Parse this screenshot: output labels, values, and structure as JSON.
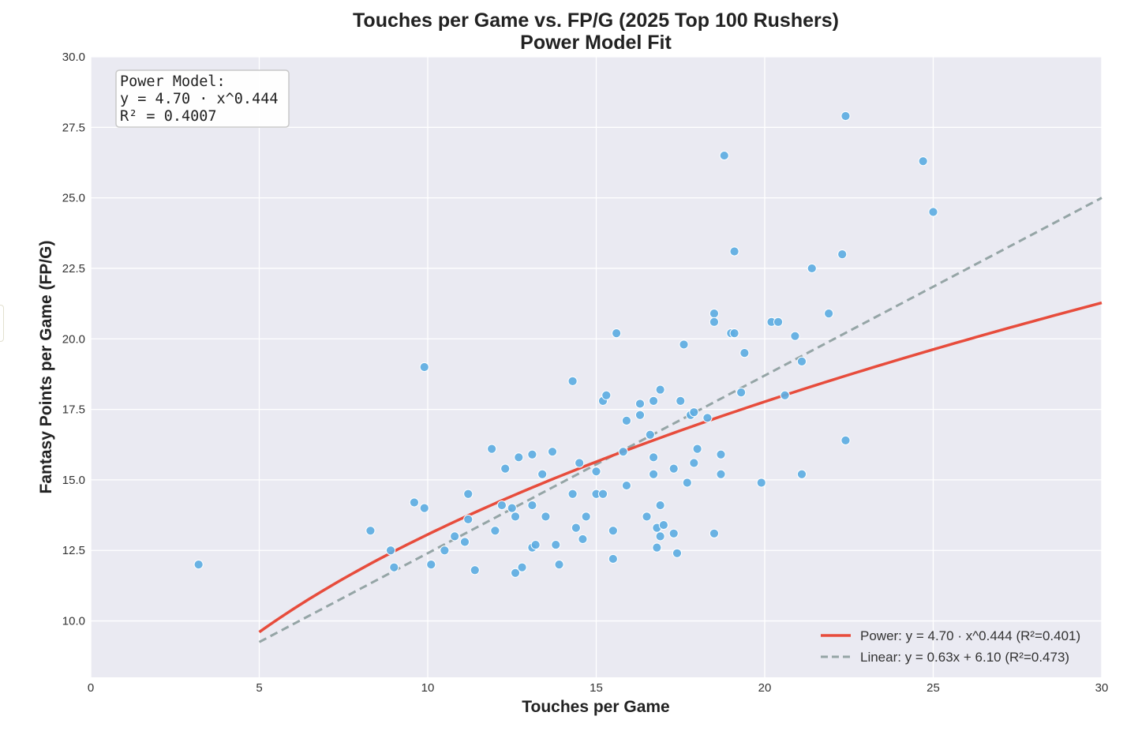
{
  "chart_data": {
    "type": "scatter",
    "title": "Touches per Game vs. FP/G (2025 Top 100 Rushers)",
    "subtitle": "Power Model Fit",
    "xlabel": "Touches per Game",
    "ylabel": "Fantasy Points per Game (FP/G)",
    "xlim": [
      0,
      30
    ],
    "ylim": [
      8,
      30
    ],
    "xticks": [
      "0",
      "5",
      "10",
      "15",
      "20",
      "25",
      "30"
    ],
    "yticks": [
      "10.0",
      "12.5",
      "15.0",
      "17.5",
      "20.0",
      "22.5",
      "25.0",
      "27.5",
      "30.0"
    ],
    "grid": true,
    "legend_position": "lower-right",
    "colors": {
      "points": "#5dade2",
      "power": "#e74c3c",
      "linear": "#95a5a6",
      "plot_background": "#eaeaf2"
    },
    "annotation": {
      "lines": [
        "Power Model:",
        "y = 4.70 · x^0.444",
        "R² = 0.4007"
      ]
    },
    "fits": {
      "power": {
        "label": "Power: y = 4.70 · x^0.444 (R²=0.401)",
        "a": 4.7,
        "b": 0.444,
        "x_range": [
          5,
          30
        ]
      },
      "linear": {
        "label": "Linear: y = 0.63x + 6.10 (R²=0.473)",
        "slope": 0.63,
        "intercept": 6.1,
        "x_range": [
          5,
          30
        ]
      }
    },
    "points": [
      [
        3.2,
        12.0
      ],
      [
        8.3,
        13.2
      ],
      [
        8.9,
        12.5
      ],
      [
        9.0,
        11.9
      ],
      [
        9.6,
        14.2
      ],
      [
        9.9,
        19.0
      ],
      [
        9.9,
        14.0
      ],
      [
        10.1,
        12.0
      ],
      [
        10.5,
        12.5
      ],
      [
        10.8,
        13.0
      ],
      [
        11.1,
        12.8
      ],
      [
        11.2,
        14.5
      ],
      [
        11.2,
        13.6
      ],
      [
        11.4,
        11.8
      ],
      [
        11.9,
        16.1
      ],
      [
        12.0,
        13.2
      ],
      [
        12.2,
        14.1
      ],
      [
        12.3,
        15.4
      ],
      [
        12.5,
        14.0
      ],
      [
        12.6,
        13.7
      ],
      [
        12.6,
        11.7
      ],
      [
        12.7,
        15.8
      ],
      [
        12.8,
        11.9
      ],
      [
        13.1,
        15.9
      ],
      [
        13.1,
        14.1
      ],
      [
        13.1,
        12.6
      ],
      [
        13.2,
        12.7
      ],
      [
        13.4,
        15.2
      ],
      [
        13.5,
        13.7
      ],
      [
        13.7,
        16.0
      ],
      [
        13.8,
        12.7
      ],
      [
        13.9,
        12.0
      ],
      [
        14.3,
        18.5
      ],
      [
        14.3,
        14.5
      ],
      [
        14.4,
        13.3
      ],
      [
        14.5,
        15.6
      ],
      [
        14.6,
        12.9
      ],
      [
        14.7,
        13.7
      ],
      [
        15.0,
        15.3
      ],
      [
        15.0,
        14.5
      ],
      [
        15.2,
        17.8
      ],
      [
        15.2,
        14.5
      ],
      [
        15.3,
        18.0
      ],
      [
        15.5,
        13.2
      ],
      [
        15.5,
        12.2
      ],
      [
        15.6,
        20.2
      ],
      [
        15.8,
        16.0
      ],
      [
        15.9,
        17.1
      ],
      [
        15.9,
        14.8
      ],
      [
        16.3,
        17.7
      ],
      [
        16.3,
        17.3
      ],
      [
        16.5,
        13.7
      ],
      [
        16.6,
        16.6
      ],
      [
        16.7,
        17.8
      ],
      [
        16.7,
        15.8
      ],
      [
        16.7,
        15.2
      ],
      [
        16.8,
        13.3
      ],
      [
        16.8,
        12.6
      ],
      [
        16.9,
        18.2
      ],
      [
        16.9,
        14.1
      ],
      [
        16.9,
        13.0
      ],
      [
        17.0,
        13.4
      ],
      [
        17.3,
        15.4
      ],
      [
        17.3,
        13.1
      ],
      [
        17.4,
        12.4
      ],
      [
        17.5,
        17.8
      ],
      [
        17.6,
        19.8
      ],
      [
        17.7,
        14.9
      ],
      [
        17.8,
        17.3
      ],
      [
        17.9,
        17.4
      ],
      [
        17.9,
        15.6
      ],
      [
        18.0,
        16.1
      ],
      [
        18.3,
        17.2
      ],
      [
        18.5,
        20.9
      ],
      [
        18.5,
        20.6
      ],
      [
        18.5,
        13.1
      ],
      [
        18.7,
        15.9
      ],
      [
        18.7,
        15.2
      ],
      [
        18.8,
        26.5
      ],
      [
        19.0,
        20.2
      ],
      [
        19.1,
        23.1
      ],
      [
        19.1,
        20.2
      ],
      [
        19.3,
        18.1
      ],
      [
        19.4,
        19.5
      ],
      [
        19.9,
        14.9
      ],
      [
        20.2,
        20.6
      ],
      [
        20.4,
        20.6
      ],
      [
        20.6,
        18.0
      ],
      [
        20.9,
        20.1
      ],
      [
        21.1,
        19.2
      ],
      [
        21.1,
        15.2
      ],
      [
        21.4,
        22.5
      ],
      [
        21.9,
        20.9
      ],
      [
        22.3,
        23.0
      ],
      [
        22.4,
        27.9
      ],
      [
        22.4,
        16.4
      ],
      [
        24.7,
        26.3
      ],
      [
        25.0,
        24.5
      ]
    ]
  }
}
